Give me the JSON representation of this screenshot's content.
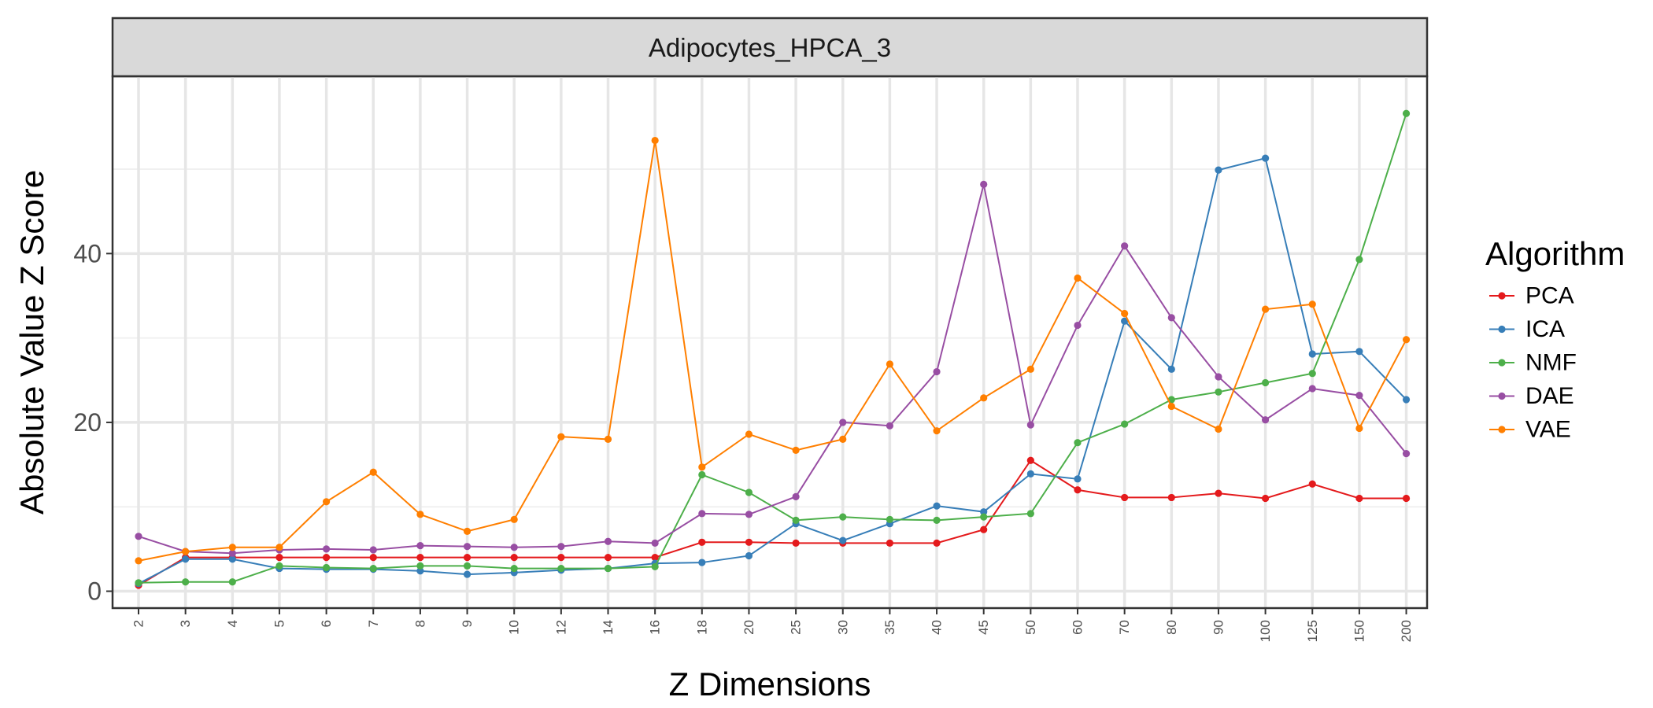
{
  "chart_data": {
    "type": "line",
    "title": "Adipocytes_HPCA_3",
    "xlabel": "Z Dimensions",
    "ylabel": "Absolute Value Z Score",
    "categories": [
      "2",
      "3",
      "4",
      "5",
      "6",
      "7",
      "8",
      "9",
      "10",
      "12",
      "14",
      "16",
      "18",
      "20",
      "25",
      "30",
      "35",
      "40",
      "45",
      "50",
      "60",
      "70",
      "80",
      "90",
      "100",
      "125",
      "150",
      "200"
    ],
    "ylim": [
      -2,
      61
    ],
    "yticks": [
      0,
      20,
      40
    ],
    "yticks_labels": [
      "0",
      "20",
      "40"
    ],
    "grid": true,
    "legend_title": "Algorithm",
    "legend_position": "right",
    "series": [
      {
        "name": "PCA",
        "color": "#E41A1C",
        "values": [
          0.7,
          4.0,
          4.0,
          4.0,
          4.0,
          4.0,
          4.0,
          4.0,
          4.0,
          4.0,
          4.0,
          4.0,
          5.8,
          5.8,
          5.7,
          5.7,
          5.7,
          5.7,
          7.3,
          15.5,
          12.0,
          11.1,
          11.1,
          11.6,
          11.0,
          12.7,
          11.0,
          11.0
        ]
      },
      {
        "name": "ICA",
        "color": "#377EB8",
        "values": [
          0.9,
          3.8,
          3.8,
          2.7,
          2.6,
          2.6,
          2.4,
          2.0,
          2.2,
          2.5,
          2.7,
          3.3,
          3.4,
          4.2,
          8.0,
          6.0,
          8.0,
          10.1,
          9.4,
          13.9,
          13.3,
          32.0,
          26.3,
          49.9,
          51.3,
          28.1,
          28.4,
          22.7
        ]
      },
      {
        "name": "NMF",
        "color": "#4DAF4A",
        "values": [
          1.0,
          1.1,
          1.1,
          3.0,
          2.8,
          2.7,
          3.0,
          3.0,
          2.7,
          2.7,
          2.7,
          2.9,
          13.8,
          11.7,
          8.4,
          8.8,
          8.5,
          8.4,
          8.8,
          9.2,
          17.6,
          19.8,
          22.7,
          23.6,
          24.7,
          25.8,
          39.3,
          56.6
        ]
      },
      {
        "name": "DAE",
        "color": "#984EA3",
        "values": [
          6.5,
          4.7,
          4.5,
          4.9,
          5.0,
          4.9,
          5.4,
          5.3,
          5.2,
          5.3,
          5.9,
          5.7,
          9.2,
          9.1,
          11.2,
          20.0,
          19.6,
          26.0,
          48.2,
          19.7,
          31.5,
          40.9,
          32.4,
          25.4,
          20.3,
          24.0,
          23.2,
          16.3
        ]
      },
      {
        "name": "VAE",
        "color": "#FF7F00",
        "values": [
          3.6,
          4.7,
          5.2,
          5.2,
          10.6,
          14.1,
          9.1,
          7.1,
          8.5,
          18.3,
          18.0,
          53.4,
          14.7,
          18.6,
          16.7,
          18.0,
          26.9,
          19.0,
          22.9,
          26.3,
          37.1,
          32.9,
          21.9,
          19.2,
          33.4,
          34.0,
          19.3,
          29.8
        ]
      }
    ]
  }
}
